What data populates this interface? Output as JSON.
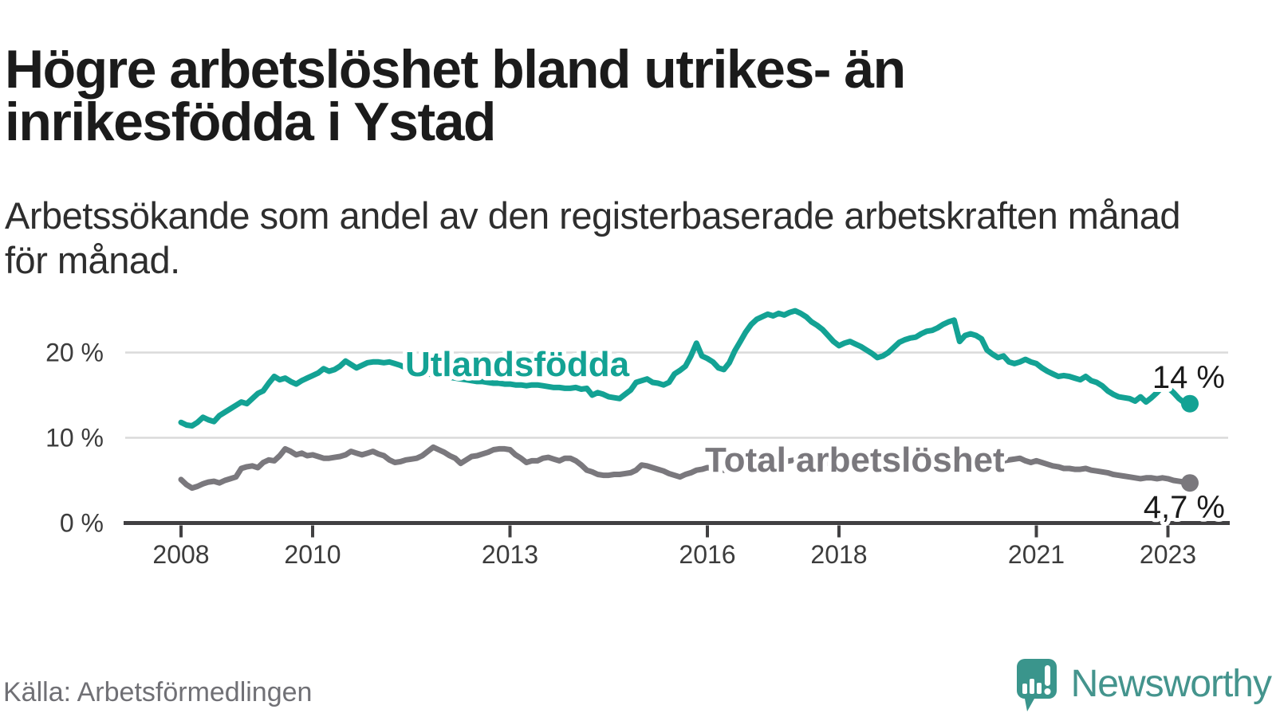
{
  "title": {
    "line1": "Högre arbetslöshet bland utrikes- än",
    "line2": "inrikesfödda i Ystad"
  },
  "subtitle": {
    "line1": "Arbetssökande som andel av den registerbaserade arbetskraften månad",
    "line2": "för månad."
  },
  "source": "Källa: Arbetsförmedlingen",
  "logo": {
    "text": "Newsworthy"
  },
  "colors": {
    "teal": "#13A294",
    "gray": "#7A787D",
    "axis": "#414042",
    "grid": "#DADADA",
    "tick_text": "#3C3C3C",
    "end_label": "#1B1B1B",
    "logo_bubble": "#3A958C",
    "logo_text": "#44948D"
  },
  "chart_data": {
    "type": "line",
    "title": "",
    "xlabel": "",
    "ylabel": "",
    "frequency": "monthly",
    "x_start": "2008-01",
    "x_end": "2023-05",
    "ylim": [
      0,
      26
    ],
    "grid": true,
    "legend_position": "inline",
    "yticks": [
      {
        "value": 0,
        "label": "0 %"
      },
      {
        "value": 10,
        "label": "10 %"
      },
      {
        "value": 20,
        "label": "20 %"
      }
    ],
    "xticks": [
      {
        "label": "2008",
        "month_index": 0
      },
      {
        "label": "2010",
        "month_index": 24
      },
      {
        "label": "2013",
        "month_index": 60
      },
      {
        "label": "2016",
        "month_index": 96
      },
      {
        "label": "2018",
        "month_index": 120
      },
      {
        "label": "2021",
        "month_index": 156
      },
      {
        "label": "2023",
        "month_index": 180
      }
    ],
    "series": [
      {
        "name": "Utlandsfödda",
        "color": "#13A294",
        "end_label": "14 %",
        "last_value": 14.0,
        "values": [
          11.8,
          11.5,
          11.4,
          11.8,
          12.4,
          12.1,
          11.9,
          12.6,
          13.0,
          13.4,
          13.8,
          14.2,
          14.0,
          14.6,
          15.2,
          15.5,
          16.4,
          17.2,
          16.8,
          17.0,
          16.6,
          16.3,
          16.7,
          17.0,
          17.3,
          17.6,
          18.1,
          17.8,
          18.0,
          18.4,
          19.0,
          18.6,
          18.2,
          18.5,
          18.8,
          18.9,
          18.9,
          18.8,
          18.9,
          18.7,
          18.5,
          18.2,
          18.0,
          17.8,
          17.6,
          17.5,
          17.4,
          17.3,
          17.2,
          17.1,
          17.0,
          16.9,
          16.8,
          16.7,
          16.6,
          16.6,
          16.5,
          16.4,
          16.4,
          16.3,
          16.3,
          16.2,
          16.2,
          16.1,
          16.2,
          16.2,
          16.1,
          16.0,
          15.9,
          15.9,
          15.8,
          15.8,
          15.9,
          15.7,
          15.8,
          15.0,
          15.3,
          15.1,
          14.8,
          14.7,
          14.6,
          15.1,
          15.6,
          16.5,
          16.7,
          16.9,
          16.5,
          16.4,
          16.2,
          16.5,
          17.5,
          17.9,
          18.4,
          19.6,
          21.1,
          19.6,
          19.3,
          18.9,
          18.2,
          18.0,
          18.8,
          20.2,
          21.3,
          22.4,
          23.3,
          23.9,
          24.2,
          24.5,
          24.3,
          24.6,
          24.4,
          24.7,
          24.9,
          24.6,
          24.2,
          23.6,
          23.2,
          22.7,
          22.0,
          21.3,
          20.8,
          21.1,
          21.3,
          21.0,
          20.7,
          20.3,
          19.9,
          19.4,
          19.6,
          20.0,
          20.6,
          21.2,
          21.5,
          21.7,
          21.8,
          22.2,
          22.5,
          22.6,
          22.9,
          23.3,
          23.6,
          23.8,
          21.3,
          22.0,
          22.2,
          22.0,
          21.6,
          20.3,
          19.8,
          19.4,
          19.6,
          18.9,
          18.7,
          18.9,
          19.2,
          18.9,
          18.7,
          18.2,
          17.8,
          17.5,
          17.2,
          17.3,
          17.2,
          17.0,
          16.8,
          17.2,
          16.7,
          16.5,
          16.1,
          15.5,
          15.1,
          14.8,
          14.7,
          14.6,
          14.3,
          14.8,
          14.2,
          14.7,
          15.3,
          16.0,
          15.9,
          15.3,
          14.6,
          14.1,
          14.0
        ]
      },
      {
        "name": "Total arbetslöshet",
        "color": "#7A787D",
        "end_label": "4,7 %",
        "last_value": 4.7,
        "values": [
          5.1,
          4.5,
          4.1,
          4.3,
          4.6,
          4.8,
          4.9,
          4.7,
          5.0,
          5.2,
          5.4,
          6.4,
          6.6,
          6.7,
          6.5,
          7.1,
          7.4,
          7.3,
          7.9,
          8.7,
          8.4,
          8.0,
          8.2,
          7.9,
          8.0,
          7.8,
          7.6,
          7.6,
          7.7,
          7.8,
          8.0,
          8.4,
          8.2,
          8.0,
          8.2,
          8.4,
          8.1,
          7.9,
          7.4,
          7.1,
          7.2,
          7.4,
          7.5,
          7.6,
          7.9,
          8.4,
          8.9,
          8.6,
          8.3,
          7.9,
          7.6,
          7.0,
          7.4,
          7.8,
          7.9,
          8.1,
          8.3,
          8.6,
          8.7,
          8.7,
          8.6,
          8.0,
          7.6,
          7.1,
          7.3,
          7.3,
          7.6,
          7.7,
          7.5,
          7.3,
          7.6,
          7.6,
          7.3,
          6.8,
          6.2,
          6.0,
          5.7,
          5.6,
          5.6,
          5.7,
          5.7,
          5.8,
          5.9,
          6.2,
          6.8,
          6.7,
          6.5,
          6.3,
          6.1,
          5.8,
          5.6,
          5.4,
          5.7,
          5.9,
          6.2,
          6.3,
          6.5,
          6.4,
          6.3,
          6.2,
          6.3,
          6.4,
          6.6,
          6.8,
          6.7,
          6.6,
          6.7,
          6.8,
          7.0,
          7.1,
          7.2,
          7.3,
          7.4,
          7.3,
          7.2,
          7.2,
          7.1,
          7.0,
          7.0,
          6.9,
          7.0,
          6.9,
          6.8,
          6.7,
          6.6,
          6.6,
          6.7,
          6.6,
          6.5,
          6.5,
          6.6,
          6.7,
          6.8,
          6.8,
          6.7,
          6.7,
          6.8,
          6.8,
          6.9,
          6.8,
          6.8,
          6.7,
          6.8,
          6.9,
          6.9,
          6.9,
          7.0,
          7.2,
          7.3,
          7.4,
          7.3,
          7.4,
          7.5,
          7.6,
          7.3,
          7.1,
          7.3,
          7.1,
          6.9,
          6.7,
          6.6,
          6.4,
          6.4,
          6.3,
          6.3,
          6.4,
          6.2,
          6.1,
          6.0,
          5.9,
          5.7,
          5.6,
          5.5,
          5.4,
          5.3,
          5.2,
          5.3,
          5.3,
          5.2,
          5.3,
          5.2,
          5.0,
          4.9,
          4.8,
          4.7
        ]
      }
    ]
  }
}
